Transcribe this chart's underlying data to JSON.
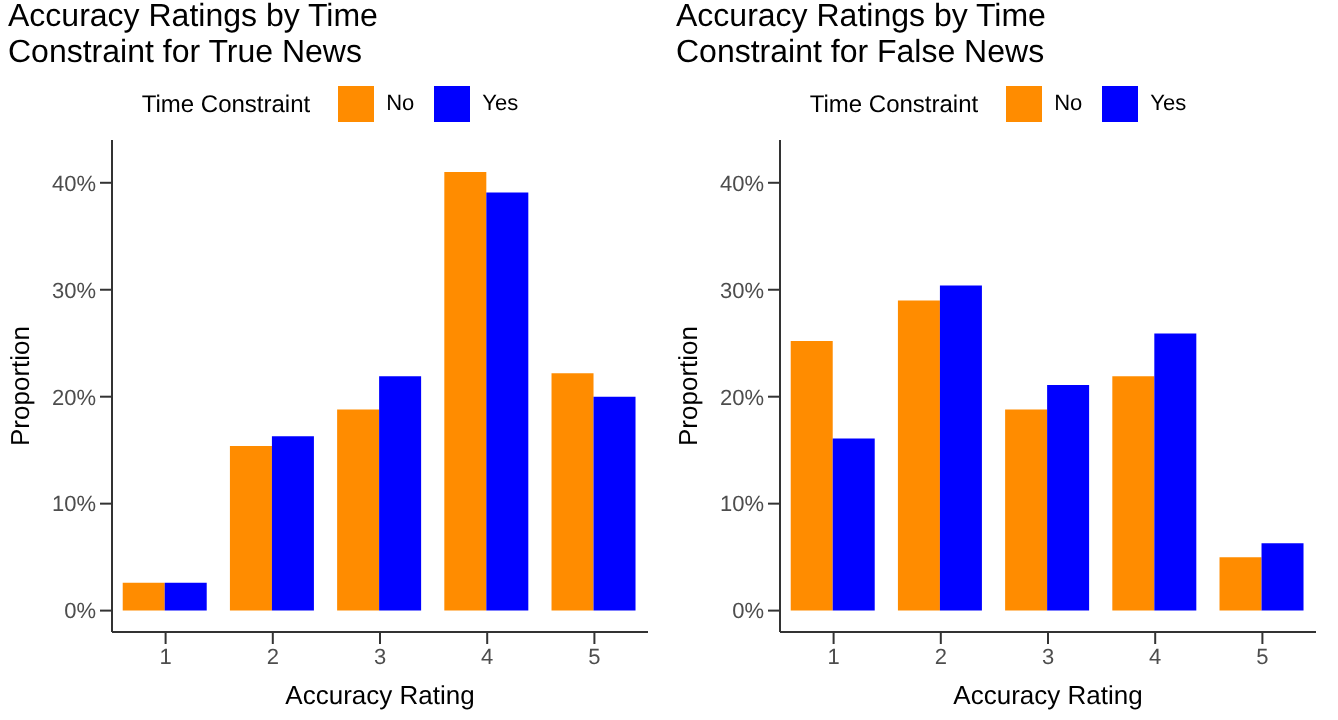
{
  "chart_data": [
    {
      "type": "bar",
      "title": "Accuracy Ratings by Time\nConstraint for True News",
      "xlabel": "Accuracy Rating",
      "ylabel": "Proportion",
      "legend_title": "Time Constraint",
      "legend": "top",
      "grid": false,
      "categories": [
        "1",
        "2",
        "3",
        "4",
        "5"
      ],
      "series": [
        {
          "name": "No",
          "color": "#ff8c00",
          "values": [
            2.6,
            15.4,
            18.8,
            41.0,
            22.2
          ]
        },
        {
          "name": "Yes",
          "color": "#0000ff",
          "values": [
            2.6,
            16.3,
            21.9,
            39.1,
            20.0
          ]
        }
      ],
      "ylim": [
        -2,
        44
      ],
      "yticks": [
        {
          "value": 0,
          "label": "0%"
        },
        {
          "value": 10,
          "label": "10%"
        },
        {
          "value": 20,
          "label": "20%"
        },
        {
          "value": 30,
          "label": "30%"
        },
        {
          "value": 40,
          "label": "40%"
        }
      ]
    },
    {
      "type": "bar",
      "title": "Accuracy Ratings by Time\nConstraint for False News",
      "xlabel": "Accuracy Rating",
      "ylabel": "Proportion",
      "legend_title": "Time Constraint",
      "legend": "top",
      "grid": false,
      "categories": [
        "1",
        "2",
        "3",
        "4",
        "5"
      ],
      "series": [
        {
          "name": "No",
          "color": "#ff8c00",
          "values": [
            25.2,
            29.0,
            18.8,
            21.9,
            5.0
          ]
        },
        {
          "name": "Yes",
          "color": "#0000ff",
          "values": [
            16.1,
            30.4,
            21.1,
            25.9,
            6.3
          ]
        }
      ],
      "ylim": [
        -2,
        44
      ],
      "yticks": [
        {
          "value": 0,
          "label": "0%"
        },
        {
          "value": 10,
          "label": "10%"
        },
        {
          "value": 20,
          "label": "20%"
        },
        {
          "value": 30,
          "label": "30%"
        },
        {
          "value": 40,
          "label": "40%"
        }
      ]
    }
  ]
}
